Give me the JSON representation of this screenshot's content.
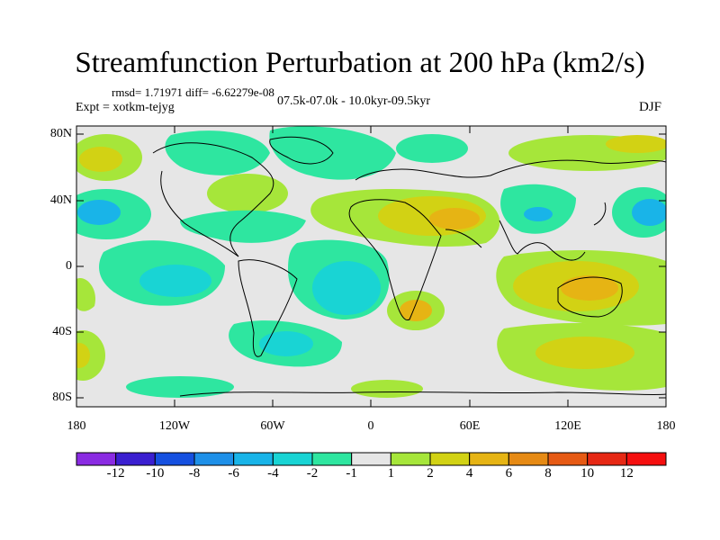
{
  "title": "Streamfunction Perturbation at 200 hPa (km2/s)",
  "stats": "rmsd= 1.71971 diff= -6.62279e-08",
  "experiment": "Expt = xotkm-tejyg",
  "period": "07.5k-07.0k - 10.0kyr-09.5kyr",
  "season": "DJF",
  "lat_axis": [
    "80N",
    "40N",
    "0",
    "40S",
    "80S"
  ],
  "lon_axis": [
    "180",
    "120W",
    "60W",
    "0",
    "60E",
    "120E",
    "180"
  ],
  "colorbar": {
    "labels": [
      "-12",
      "-10",
      "-8",
      "-6",
      "-4",
      "-2",
      "-1",
      "1",
      "2",
      "4",
      "6",
      "8",
      "10",
      "12"
    ],
    "colors": [
      "#8a2be2",
      "#3a1fd0",
      "#1550e0",
      "#1e90e8",
      "#19b4e8",
      "#19d4d4",
      "#2ee6a0",
      "#e6e6e6",
      "#a6e63a",
      "#d2d214",
      "#e6b414",
      "#e68a14",
      "#e65a14",
      "#e62814",
      "#f50f0f"
    ]
  },
  "palette": {
    "background_field": "#e6e6e6",
    "pos1": "#a6e63a",
    "pos2": "#d2d214",
    "pos3": "#e6b414",
    "pos4": "#e68a14",
    "neg1": "#2ee6a0",
    "neg2": "#19d4d4",
    "neg3": "#19b4e8",
    "neg4": "#1e90e8"
  }
}
